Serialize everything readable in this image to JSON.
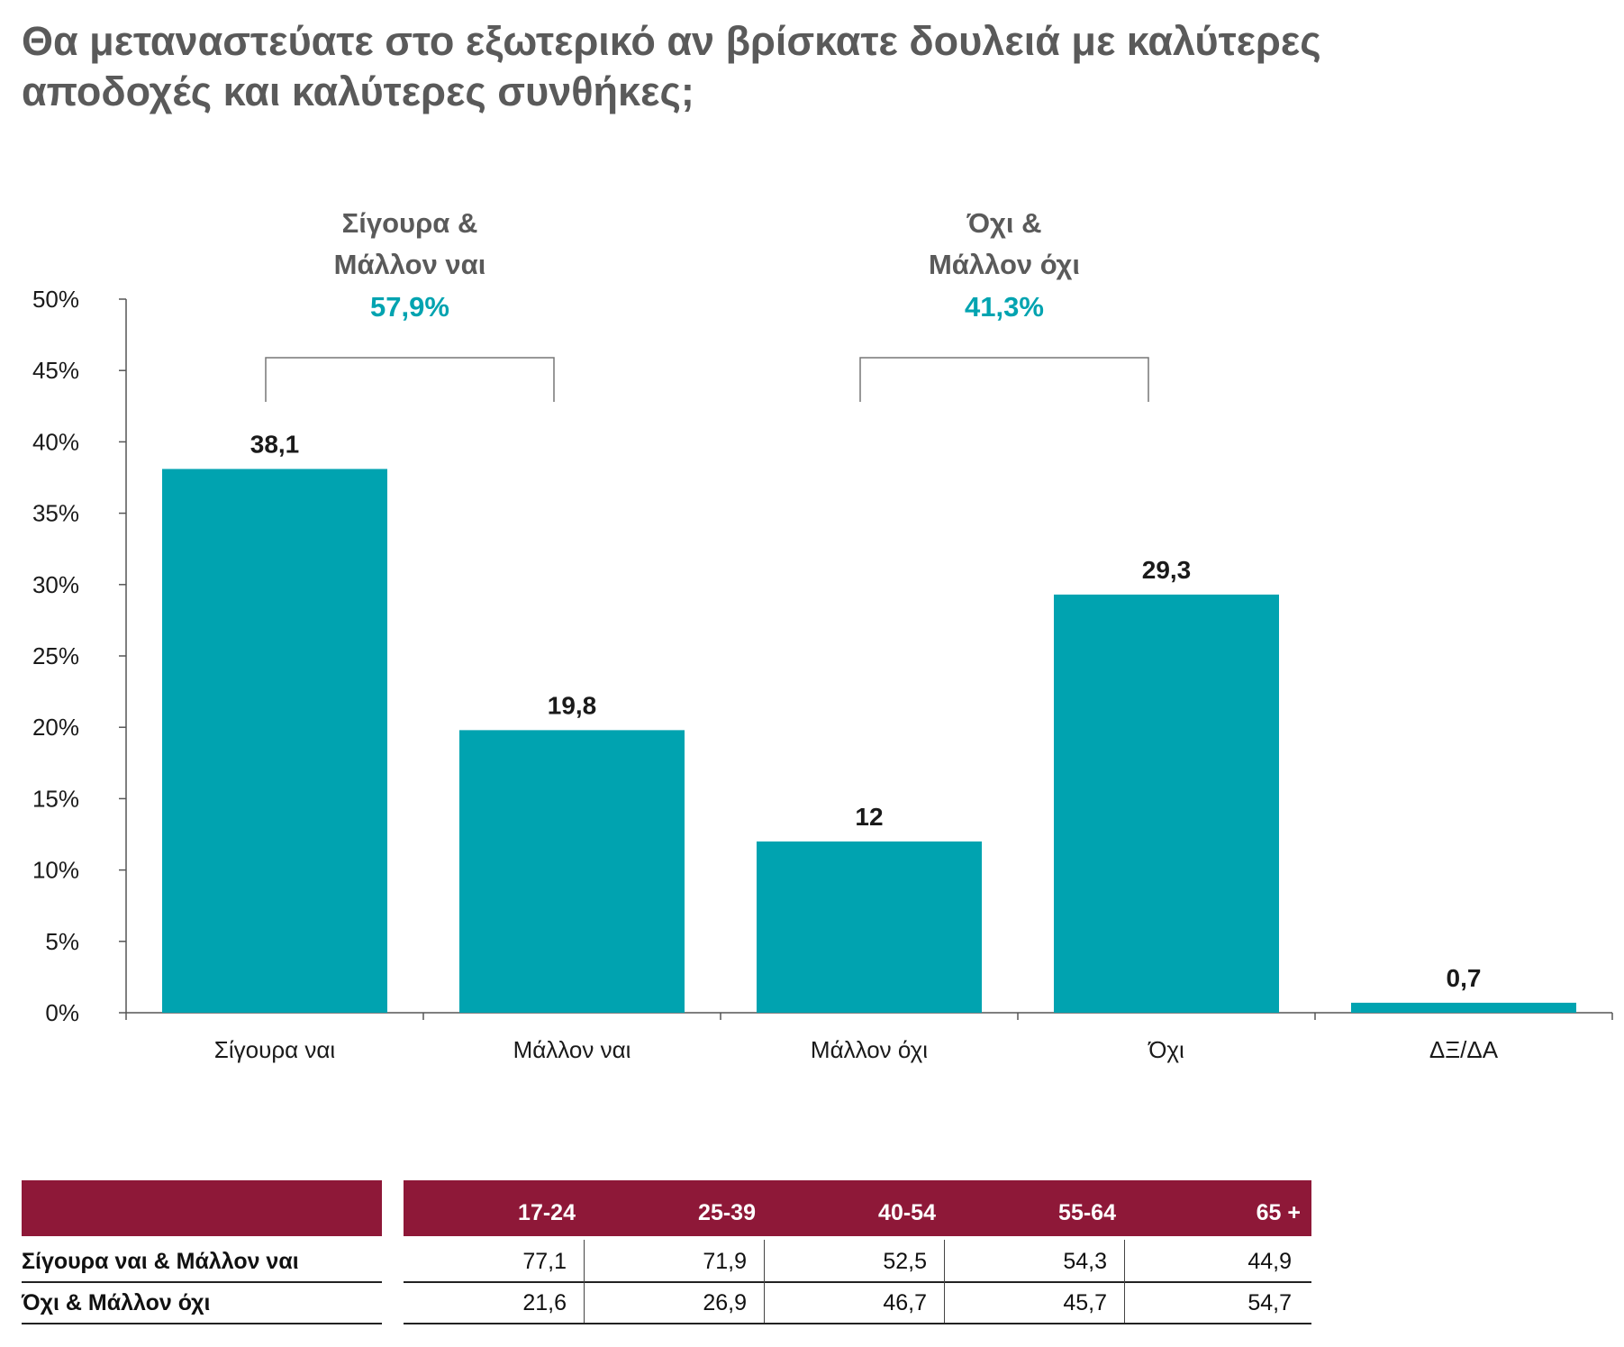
{
  "title": "Θα μεταναστεύατε στο εξωτερικό αν βρίσκατε δουλειά με καλύτερες αποδοχές και καλύτερες συνθήκες;",
  "colors": {
    "bar": "#00a3b0",
    "accent": "#00a3b0",
    "table_header": "#8e1838",
    "group_label": "#5a5a5a"
  },
  "chart_data": {
    "type": "bar",
    "categories": [
      "Σίγουρα ναι",
      "Μάλλον ναι",
      "Μάλλον όχι",
      "Όχι",
      "ΔΞ/ΔΑ"
    ],
    "values": [
      38.1,
      19.8,
      12,
      29.3,
      0.7
    ],
    "value_labels": [
      "38,1",
      "19,8",
      "12",
      "29,3",
      "0,7"
    ],
    "y_ticks": [
      "0%",
      "5%",
      "10%",
      "15%",
      "20%",
      "25%",
      "30%",
      "35%",
      "40%",
      "45%",
      "50%"
    ],
    "ylim": [
      0,
      50
    ],
    "grid": false,
    "groups": [
      {
        "line1": "Σίγουρα &",
        "line2": "Μάλλον ναι",
        "total": "57,9%",
        "categories": [
          0,
          1
        ]
      },
      {
        "line1": "Όχι &",
        "line2": "Μάλλον όχι",
        "total": "41,3%",
        "categories": [
          2,
          3
        ]
      }
    ]
  },
  "table": {
    "columns": [
      "17-24",
      "25-39",
      "40-54",
      "55-64",
      "65 +"
    ],
    "rows": [
      {
        "label": "Σίγουρα ναι & Μάλλον ναι",
        "values": [
          "77,1",
          "71,9",
          "52,5",
          "54,3",
          "44,9"
        ]
      },
      {
        "label": "Όχι & Μάλλον όχι",
        "values": [
          "21,6",
          "26,9",
          "46,7",
          "45,7",
          "54,7"
        ]
      }
    ]
  }
}
